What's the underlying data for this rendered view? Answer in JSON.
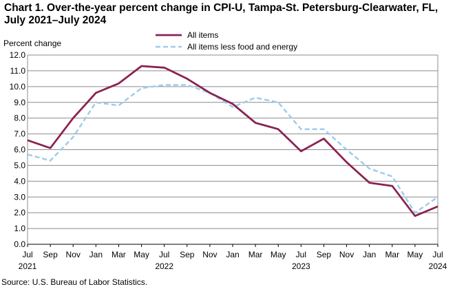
{
  "chart_data": {
    "type": "line",
    "title": "Chart 1. Over-the-year percent change in CPI-U, Tampa-St. Petersburg-Clearwater, FL, July 2021–July 2024",
    "ylabel": "Percent change",
    "xlabel": "",
    "ylim": [
      0.0,
      12.0
    ],
    "yticks": [
      "0.0",
      "1.0",
      "2.0",
      "3.0",
      "4.0",
      "5.0",
      "6.0",
      "7.0",
      "8.0",
      "9.0",
      "10.0",
      "11.0",
      "12.0"
    ],
    "categories": [
      "Jul",
      "Sep",
      "Nov",
      "Jan",
      "Mar",
      "May",
      "Jul",
      "Sep",
      "Nov",
      "Jan",
      "Mar",
      "May",
      "Jul",
      "Sep",
      "Nov",
      "Jan",
      "Mar",
      "May",
      "Jul"
    ],
    "year_labels": [
      {
        "index": 0,
        "text": "2021"
      },
      {
        "index": 6,
        "text": "2022"
      },
      {
        "index": 12,
        "text": "2023"
      },
      {
        "index": 18,
        "text": "2024"
      }
    ],
    "grid": true,
    "legend_position": "top-center",
    "series": [
      {
        "name": "All items",
        "color": "#8B2252",
        "style": "solid",
        "values": [
          6.6,
          6.1,
          8.0,
          9.6,
          10.2,
          11.3,
          11.2,
          10.5,
          9.6,
          8.9,
          7.7,
          7.3,
          5.9,
          6.7,
          5.2,
          3.9,
          3.7,
          1.8,
          2.4
        ]
      },
      {
        "name": "All items less food and energy",
        "color": "#9DCCEE",
        "style": "dashed",
        "values": [
          5.7,
          5.3,
          6.8,
          9.0,
          8.8,
          9.9,
          10.1,
          10.1,
          9.6,
          8.7,
          9.3,
          9.0,
          7.3,
          7.3,
          6.0,
          4.8,
          4.3,
          2.0,
          3.0
        ]
      }
    ]
  },
  "source": "Source: U.S. Bureau of Labor Statistics."
}
